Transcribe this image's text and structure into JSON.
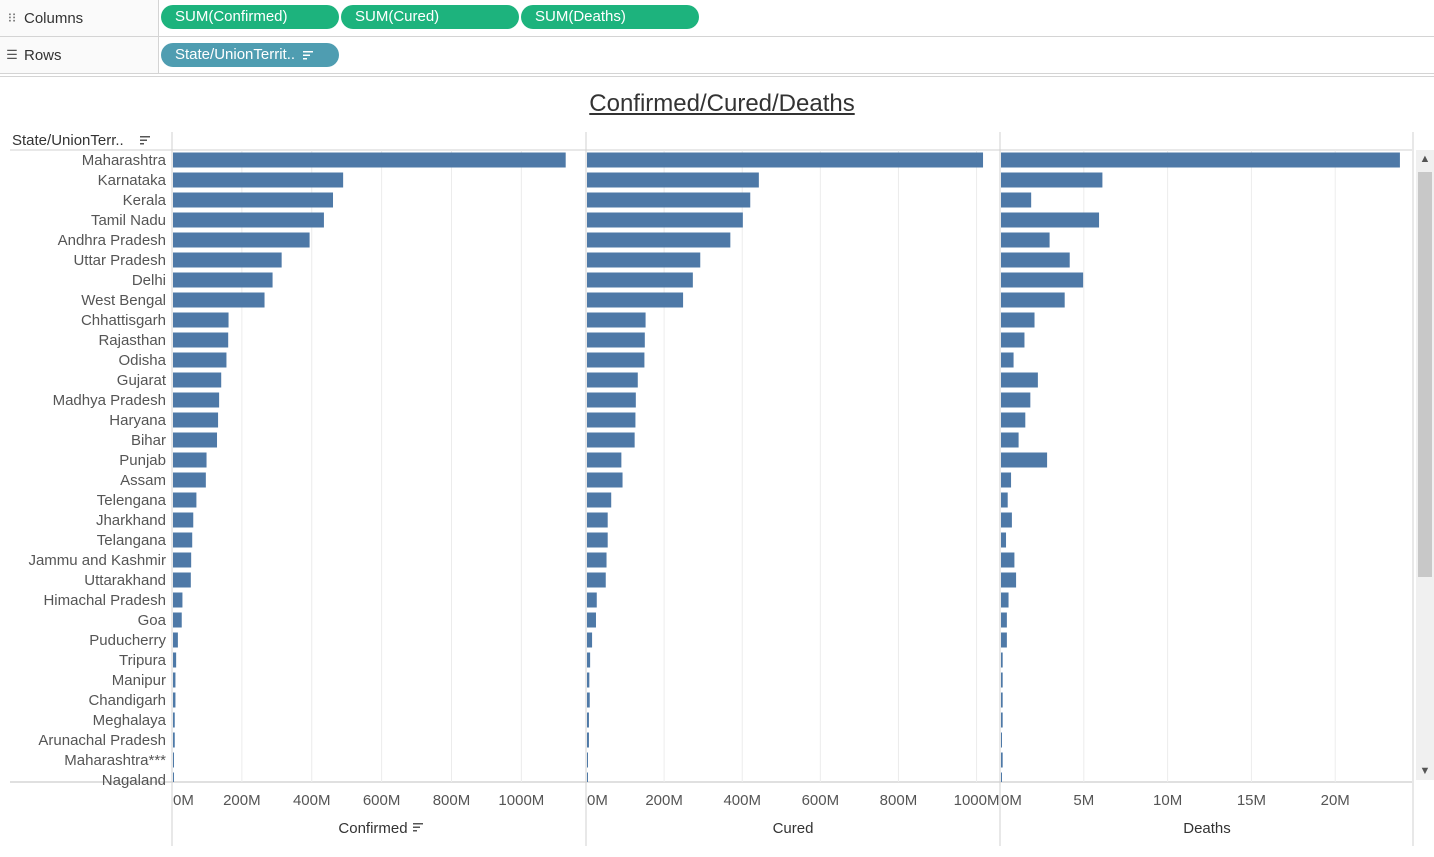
{
  "shelves": {
    "columns": {
      "label": "Columns",
      "icon": "columns-icon",
      "pills": [
        "SUM(Confirmed)",
        "SUM(Cured)",
        "SUM(Deaths)"
      ]
    },
    "rows": {
      "label": "Rows",
      "icon": "rows-icon",
      "pills": [
        "State/UnionTerrit.."
      ]
    }
  },
  "chart_data": {
    "type": "bar",
    "orientation": "horizontal",
    "title": "Confirmed/Cured/Deaths",
    "row_header": "State/UnionTerr..",
    "categories": [
      "Maharashtra",
      "Karnataka",
      "Kerala",
      "Tamil Nadu",
      "Andhra Pradesh",
      "Uttar Pradesh",
      "Delhi",
      "West Bengal",
      "Chhattisgarh",
      "Rajasthan",
      "Odisha",
      "Gujarat",
      "Madhya Pradesh",
      "Haryana",
      "Bihar",
      "Punjab",
      "Assam",
      "Telengana",
      "Jharkhand",
      "Telangana",
      "Jammu and Kashmir",
      "Uttarakhand",
      "Himachal Pradesh",
      "Goa",
      "Puducherry",
      "Tripura",
      "Manipur",
      "Chandigarh",
      "Meghalaya",
      "Arunachal Pradesh",
      "Maharashtra***",
      "Nagaland"
    ],
    "panels": [
      {
        "name": "Confirmed",
        "sorted": true,
        "ticks": [
          "0M",
          "200M",
          "400M",
          "600M",
          "800M",
          "1000M"
        ],
        "tick_values": [
          0,
          200,
          400,
          600,
          800,
          1000
        ],
        "xlim": [
          0,
          1185
        ],
        "unit": "M",
        "values": [
          1124,
          487,
          458,
          432,
          391,
          311,
          285,
          262,
          159,
          158,
          153,
          138,
          132,
          129,
          126,
          96,
          94,
          67,
          58,
          55,
          52,
          51,
          27,
          25,
          14,
          9,
          7,
          7,
          5,
          5,
          2,
          1
        ]
      },
      {
        "name": "Cured",
        "sorted": false,
        "ticks": [
          "0M",
          "200M",
          "400M",
          "600M",
          "800M",
          "1000M"
        ],
        "tick_values": [
          0,
          200,
          400,
          600,
          800,
          1000
        ],
        "xlim": [
          0,
          1060
        ],
        "unit": "M",
        "values": [
          1014,
          440,
          418,
          399,
          367,
          290,
          271,
          246,
          150,
          148,
          147,
          130,
          125,
          124,
          122,
          88,
          91,
          62,
          53,
          53,
          50,
          48,
          25,
          23,
          13,
          8,
          6,
          7,
          5,
          5,
          1,
          1
        ]
      },
      {
        "name": "Deaths",
        "sorted": false,
        "ticks": [
          "0M",
          "5M",
          "10M",
          "15M",
          "20M"
        ],
        "tick_values": [
          0,
          5,
          10,
          15,
          20
        ],
        "xlim": [
          0,
          24.7
        ],
        "unit": "M",
        "values": [
          23.8,
          6.05,
          1.8,
          5.85,
          2.9,
          4.1,
          4.9,
          3.8,
          2.0,
          1.4,
          0.75,
          2.2,
          1.75,
          1.45,
          1.05,
          2.75,
          0.6,
          0.4,
          0.65,
          0.3,
          0.8,
          0.9,
          0.45,
          0.35,
          0.35,
          0.1,
          0.1,
          0.1,
          0.1,
          0.05,
          0.1,
          0.05
        ]
      }
    ],
    "grid": true
  },
  "colors": {
    "bar": "#4e79a7",
    "pill_measure": "#1db37d",
    "pill_dimension": "#4f9db1",
    "grid": "#ececec"
  }
}
